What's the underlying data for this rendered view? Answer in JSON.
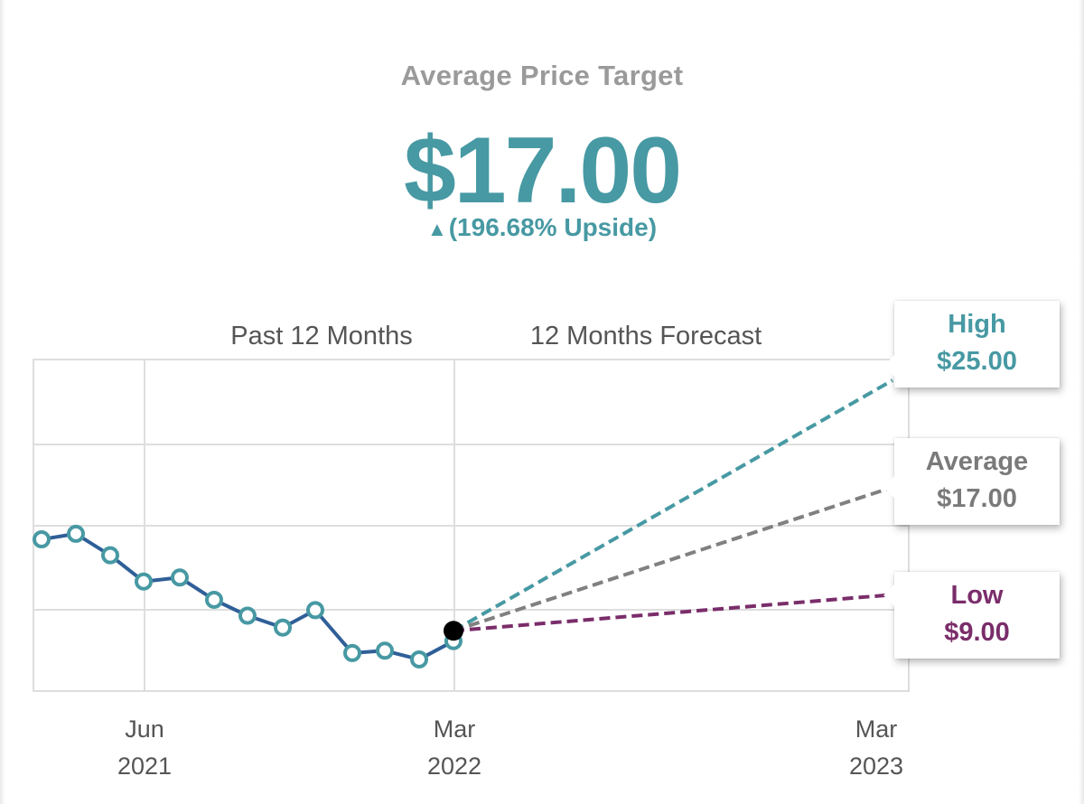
{
  "header": {
    "title": "Average Price Target",
    "price": "$17.00",
    "upside_arrow": "▲",
    "upside": "(196.68% Upside)"
  },
  "colors": {
    "accent": "#4799a3",
    "history_line": "#2f5f98",
    "average": "#808080",
    "low": "#7a2d6a",
    "grid": "#dedede"
  },
  "chart_data": {
    "type": "line",
    "section_labels": [
      "Past 12 Months",
      "12 Months Forecast"
    ],
    "x_tick_labels": [
      {
        "month": "Jun",
        "year": "2021"
      },
      {
        "month": "Mar",
        "year": "2022"
      },
      {
        "month": "Mar",
        "year": "2023"
      }
    ],
    "history": {
      "x": [
        "2021-03",
        "2021-04",
        "2021-05",
        "2021-06",
        "2021-07",
        "2021-08",
        "2021-09",
        "2021-10",
        "2021-11",
        "2021-12",
        "2022-01",
        "2022-02",
        "2022-03"
      ],
      "values": [
        8.8,
        9.5,
        6.8,
        3.5,
        4.0,
        1.2,
        -0.8,
        -2.3,
        -0.1,
        -5.5,
        -5.2,
        -6.3,
        -4.0
      ],
      "current_value": -2.7
    },
    "forecasts": [
      {
        "name": "High",
        "label": "$25.00",
        "color": "#4799a3"
      },
      {
        "name": "Average",
        "label": "$17.00",
        "color": "#808080"
      },
      {
        "name": "Low",
        "label": "$9.00",
        "color": "#7a2d6a"
      }
    ]
  }
}
